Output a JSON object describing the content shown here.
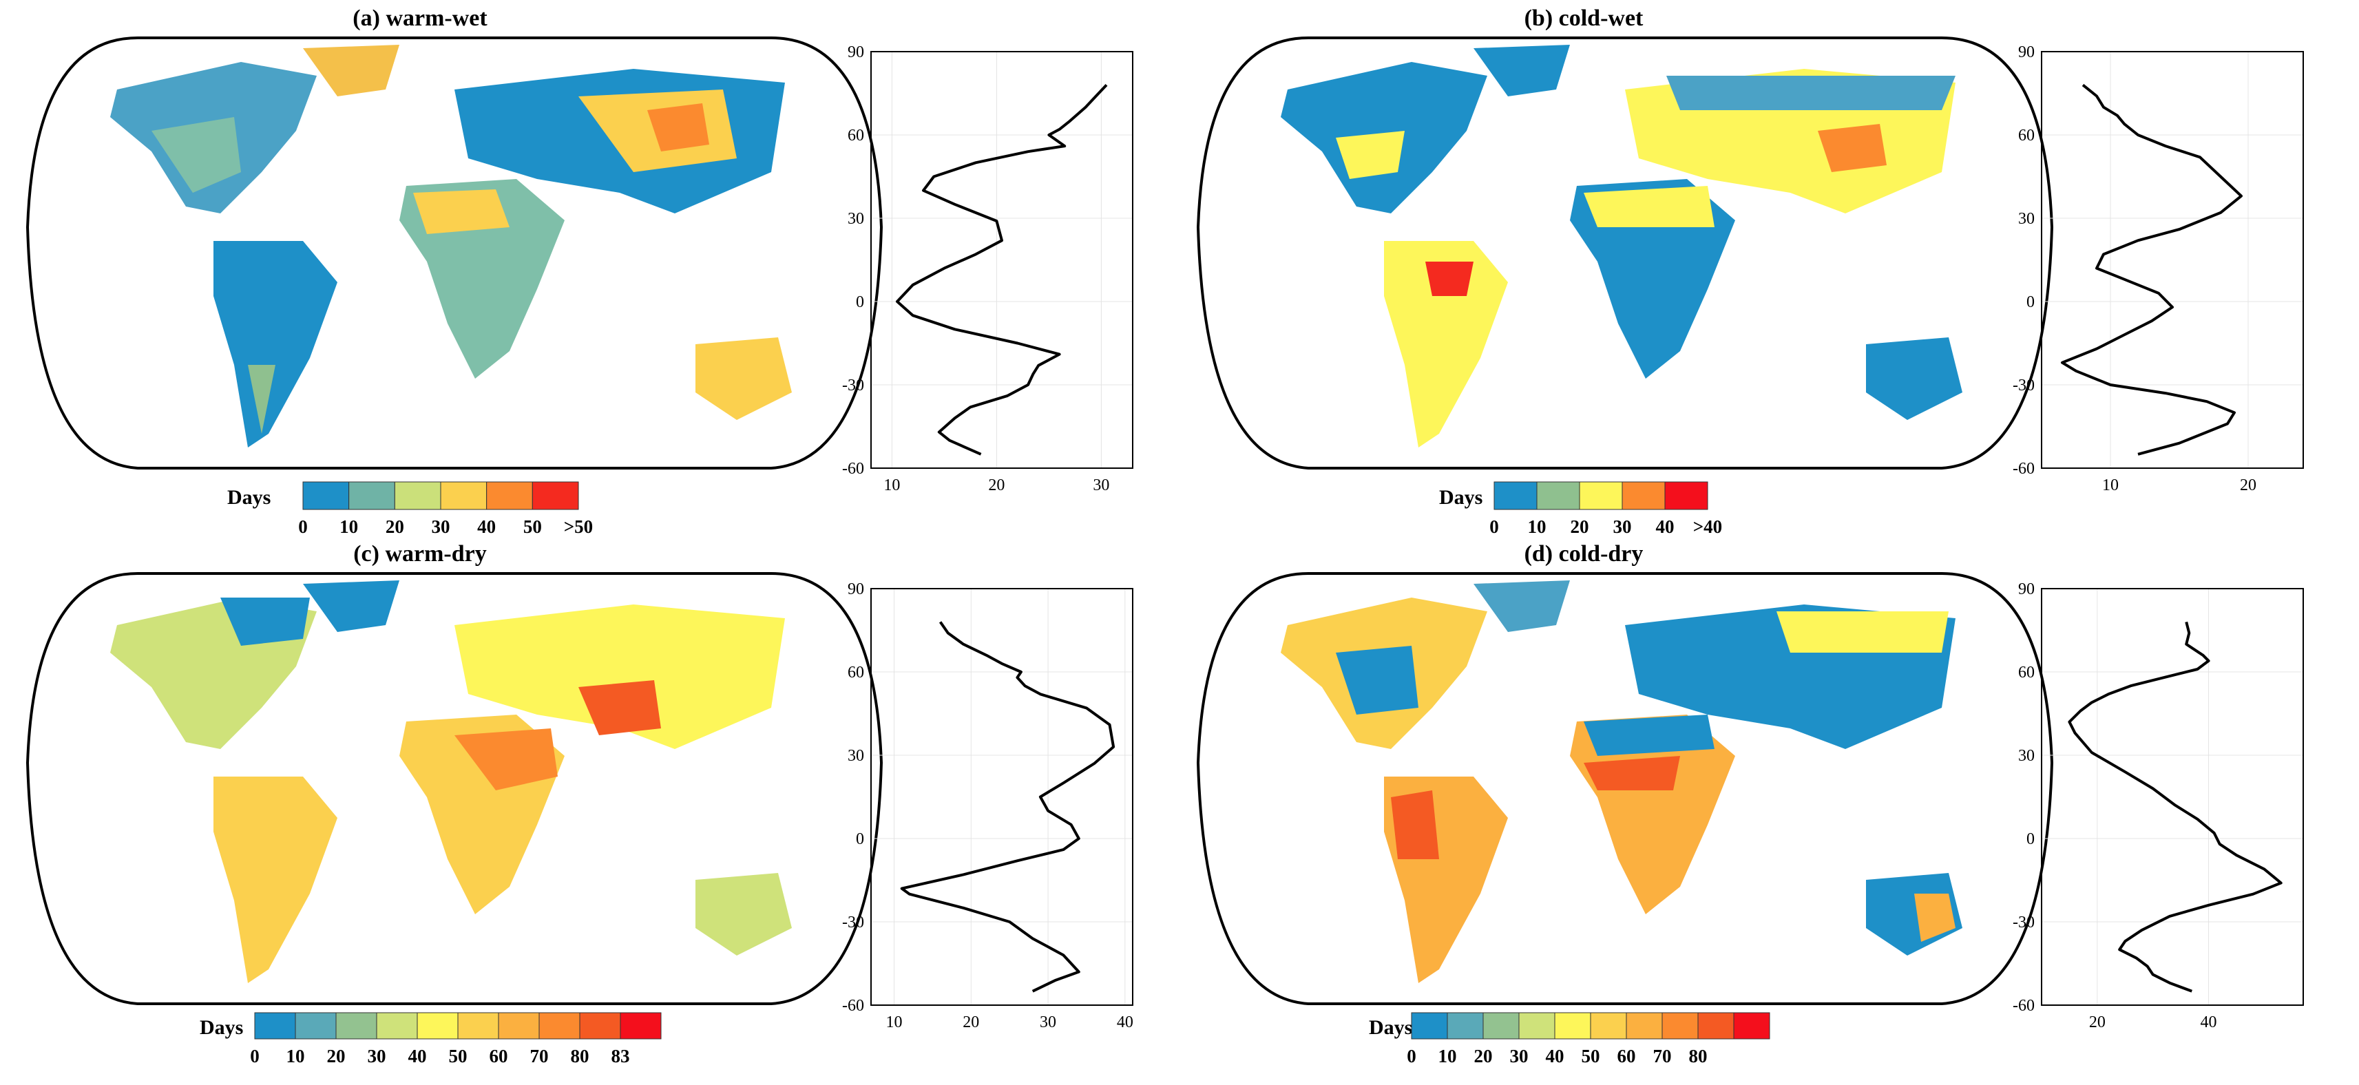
{
  "panels": [
    {
      "id": "a",
      "title": "(a) warm-wet",
      "colorbar": {
        "label": "Days",
        "colors": [
          "#1e90c8",
          "#6fb3a6",
          "#cbe07a",
          "#fbd04e",
          "#fb8a2f",
          "#f42a1f"
        ],
        "ticks": [
          "0",
          "10",
          "20",
          "30",
          "40",
          "50",
          ">50"
        ]
      },
      "profile": {
        "xticks": [
          10,
          20,
          30
        ],
        "xlim": [
          8,
          33
        ],
        "yticks": [
          -60,
          -30,
          0,
          30,
          60,
          90
        ],
        "ylim": [
          -60,
          90
        ],
        "points": [
          [
            18.5,
            -55
          ],
          [
            15.5,
            -50
          ],
          [
            14.5,
            -47
          ],
          [
            16,
            -42
          ],
          [
            17.5,
            -38
          ],
          [
            21,
            -34
          ],
          [
            23,
            -30
          ],
          [
            23.5,
            -26
          ],
          [
            24,
            -23
          ],
          [
            26,
            -19
          ],
          [
            22,
            -15
          ],
          [
            16,
            -10
          ],
          [
            12,
            -5
          ],
          [
            10.5,
            0
          ],
          [
            12,
            6
          ],
          [
            15,
            12
          ],
          [
            18,
            17
          ],
          [
            20.5,
            22
          ],
          [
            20,
            29
          ],
          [
            16,
            35
          ],
          [
            13,
            40
          ],
          [
            14,
            45
          ],
          [
            18,
            50
          ],
          [
            23,
            54
          ],
          [
            26.5,
            56
          ],
          [
            25,
            60
          ],
          [
            26,
            62
          ],
          [
            27,
            65
          ],
          [
            28.5,
            70
          ],
          [
            29.5,
            74
          ],
          [
            30.5,
            78
          ]
        ]
      }
    },
    {
      "id": "b",
      "title": "(b) cold-wet",
      "colorbar": {
        "label": "Days",
        "colors": [
          "#1e90c8",
          "#8fc08f",
          "#fdf65a",
          "#fb8a2f",
          "#f40f1c"
        ],
        "ticks": [
          "0",
          "10",
          "20",
          "30",
          "40",
          ">40"
        ]
      },
      "profile": {
        "xticks": [
          10,
          20
        ],
        "xlim": [
          5,
          24
        ],
        "yticks": [
          -60,
          -30,
          0,
          30,
          60,
          90
        ],
        "ylim": [
          -60,
          90
        ],
        "points": [
          [
            12,
            -55
          ],
          [
            15,
            -51
          ],
          [
            17,
            -47
          ],
          [
            18.5,
            -44
          ],
          [
            19,
            -40
          ],
          [
            17,
            -36
          ],
          [
            14,
            -33
          ],
          [
            10,
            -30
          ],
          [
            7.5,
            -25
          ],
          [
            6.5,
            -22
          ],
          [
            9,
            -17
          ],
          [
            11,
            -12
          ],
          [
            13,
            -7
          ],
          [
            14.5,
            -2
          ],
          [
            13.5,
            3
          ],
          [
            11,
            8
          ],
          [
            9,
            12
          ],
          [
            9.5,
            17
          ],
          [
            12,
            22
          ],
          [
            15,
            26
          ],
          [
            18,
            32
          ],
          [
            19.5,
            38
          ],
          [
            18,
            45
          ],
          [
            16.5,
            52
          ],
          [
            14,
            56
          ],
          [
            12,
            60
          ],
          [
            11,
            64
          ],
          [
            10.5,
            67
          ],
          [
            9.5,
            70
          ],
          [
            9,
            74
          ],
          [
            8,
            78
          ]
        ]
      }
    },
    {
      "id": "c",
      "title": "(c) warm-dry",
      "colorbar": {
        "label": "Days",
        "colors": [
          "#1e90c8",
          "#5aa9b8",
          "#93c290",
          "#cfe27a",
          "#fdf65a",
          "#fbd04e",
          "#fbb040",
          "#fb8a2f",
          "#f45a23",
          "#f40f1c"
        ],
        "ticks": [
          "0",
          "10",
          "20",
          "30",
          "40",
          "50",
          "60",
          "70",
          "80",
          "83"
        ]
      },
      "profile": {
        "xticks": [
          10,
          20,
          30,
          40
        ],
        "xlim": [
          7,
          41
        ],
        "yticks": [
          -60,
          -30,
          0,
          30,
          60,
          90
        ],
        "ylim": [
          -60,
          90
        ],
        "points": [
          [
            28,
            -55
          ],
          [
            31,
            -51
          ],
          [
            34,
            -48
          ],
          [
            33,
            -45
          ],
          [
            32,
            -42
          ],
          [
            30,
            -39
          ],
          [
            28,
            -36
          ],
          [
            25,
            -30
          ],
          [
            19,
            -25
          ],
          [
            12,
            -20
          ],
          [
            11,
            -18
          ],
          [
            19,
            -13
          ],
          [
            26,
            -8
          ],
          [
            32,
            -4
          ],
          [
            34,
            0
          ],
          [
            33,
            5
          ],
          [
            30,
            10
          ],
          [
            29,
            15
          ],
          [
            32,
            20
          ],
          [
            36,
            27
          ],
          [
            38.5,
            33
          ],
          [
            38,
            41
          ],
          [
            35,
            47
          ],
          [
            29,
            52
          ],
          [
            27,
            55
          ],
          [
            26,
            58
          ],
          [
            26.5,
            60
          ],
          [
            24,
            63
          ],
          [
            22,
            66
          ],
          [
            19,
            70
          ],
          [
            17,
            74
          ],
          [
            16,
            78
          ]
        ]
      }
    },
    {
      "id": "d",
      "title": "(d) cold-dry",
      "colorbar": {
        "label": "Days",
        "colors": [
          "#1e90c8",
          "#5aa9b8",
          "#93c290",
          "#cfe27a",
          "#fdf65a",
          "#fbd04e",
          "#fbb040",
          "#fb8a2f",
          "#f45a23",
          "#f40f1c"
        ],
        "ticks": [
          "0",
          "10",
          "20",
          "30",
          "40",
          "50",
          "60",
          "70",
          "80"
        ]
      },
      "profile": {
        "xticks": [
          20,
          40
        ],
        "xlim": [
          10,
          57
        ],
        "yticks": [
          -60,
          -30,
          0,
          30,
          60,
          90
        ],
        "ylim": [
          -60,
          90
        ],
        "points": [
          [
            37,
            -55
          ],
          [
            33,
            -52
          ],
          [
            30,
            -49
          ],
          [
            29,
            -46
          ],
          [
            27,
            -43
          ],
          [
            24,
            -40
          ],
          [
            25,
            -37
          ],
          [
            28,
            -33
          ],
          [
            33,
            -28
          ],
          [
            40,
            -24
          ],
          [
            48,
            -20
          ],
          [
            53,
            -16
          ],
          [
            50,
            -11
          ],
          [
            45,
            -6
          ],
          [
            42,
            -2
          ],
          [
            41,
            2
          ],
          [
            38,
            7
          ],
          [
            34,
            12
          ],
          [
            30,
            18
          ],
          [
            25,
            24
          ],
          [
            19,
            31
          ],
          [
            16,
            38
          ],
          [
            15,
            42
          ],
          [
            17,
            46
          ],
          [
            19,
            49
          ],
          [
            22,
            52
          ],
          [
            26,
            55
          ],
          [
            32,
            58
          ],
          [
            38,
            61
          ],
          [
            40,
            64
          ],
          [
            39,
            66
          ],
          [
            36,
            70
          ],
          [
            36.5,
            74
          ],
          [
            36,
            78
          ]
        ]
      }
    }
  ]
}
